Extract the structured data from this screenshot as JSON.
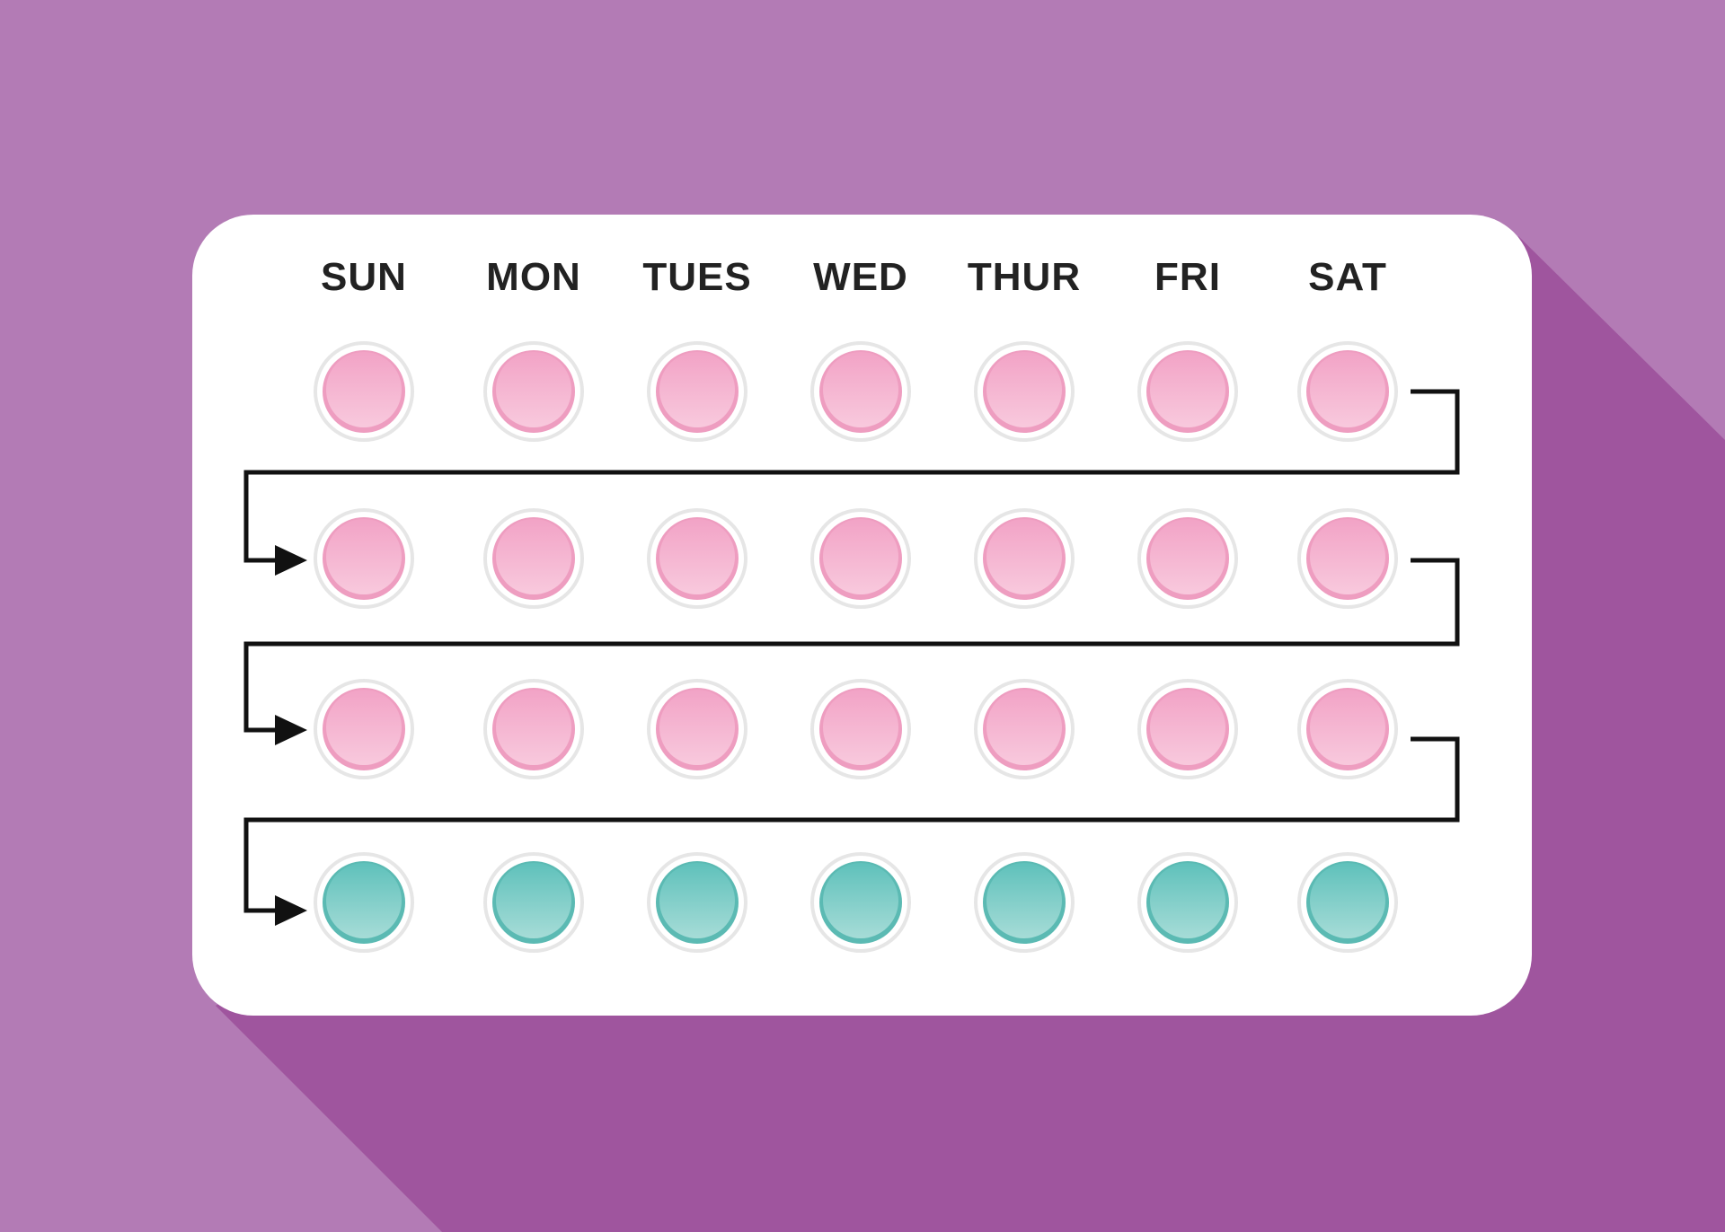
{
  "colors": {
    "background": "#b37bb5",
    "shadow": "#9f559e",
    "card": "#ffffff",
    "active_pill": "#f4a7c8",
    "placebo_pill": "#6cc6c0",
    "arrow": "#111111"
  },
  "days": [
    "SUN",
    "MON",
    "TUES",
    "WED",
    "THUR",
    "FRI",
    "SAT"
  ],
  "weeks": [
    [
      "active",
      "active",
      "active",
      "active",
      "active",
      "active",
      "active"
    ],
    [
      "active",
      "active",
      "active",
      "active",
      "active",
      "active",
      "active"
    ],
    [
      "active",
      "active",
      "active",
      "active",
      "active",
      "active",
      "active"
    ],
    [
      "placebo",
      "placebo",
      "placebo",
      "placebo",
      "placebo",
      "placebo",
      "placebo"
    ]
  ]
}
